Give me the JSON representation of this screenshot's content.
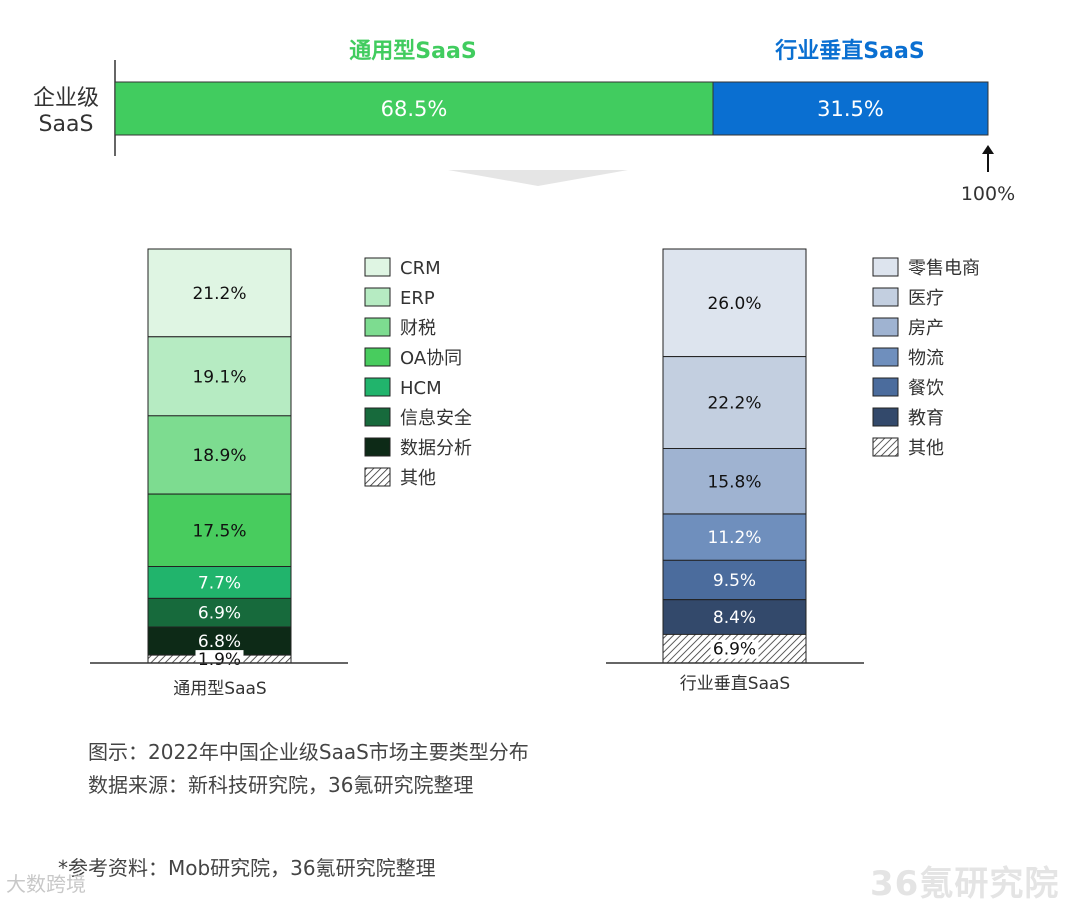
{
  "top": {
    "row_label_lines": [
      "企业级",
      "SaaS"
    ],
    "general_label": "通用型SaaS",
    "vertical_label": "行业垂直SaaS",
    "general_value": "68.5%",
    "vertical_value": "31.5%",
    "total_label": "100%",
    "colors": {
      "general": "#41cc5f",
      "vertical": "#0a6fd1"
    }
  },
  "chart_data": [
    {
      "type": "bar",
      "stacked": true,
      "orientation": "horizontal",
      "categories": [
        "企业级SaaS"
      ],
      "series": [
        {
          "name": "通用型SaaS",
          "values": [
            68.5
          ],
          "label": "68.5%",
          "color": "#41cc5f"
        },
        {
          "name": "行业垂直SaaS",
          "values": [
            31.5
          ],
          "label": "31.5%",
          "color": "#0a6fd1"
        }
      ],
      "xlim": [
        0,
        100
      ]
    },
    {
      "type": "bar",
      "stacked": true,
      "xlabel": "通用型SaaS",
      "categories": [
        "通用型SaaS"
      ],
      "series": [
        {
          "name": "CRM",
          "values": [
            21.2
          ],
          "label": "21.2%",
          "color": "#dff5e3",
          "text_color": "#111111"
        },
        {
          "name": "ERP",
          "values": [
            19.1
          ],
          "label": "19.1%",
          "color": "#b6ebc2",
          "text_color": "#111111"
        },
        {
          "name": "财税",
          "values": [
            18.9
          ],
          "label": "18.9%",
          "color": "#7ddc90",
          "text_color": "#111111"
        },
        {
          "name": "OA协同",
          "values": [
            17.5
          ],
          "label": "17.5%",
          "color": "#48cc5e",
          "text_color": "#111111"
        },
        {
          "name": "HCM",
          "values": [
            7.7
          ],
          "label": "7.7%",
          "color": "#21b46c",
          "text_color": "#ffffff"
        },
        {
          "name": "信息安全",
          "values": [
            6.9
          ],
          "label": "6.9%",
          "color": "#176a3c",
          "text_color": "#ffffff"
        },
        {
          "name": "数据分析",
          "values": [
            6.8
          ],
          "label": "6.8%",
          "color": "#0d2a17",
          "text_color": "#ffffff"
        },
        {
          "name": "其他",
          "values": [
            1.9
          ],
          "label": "1.9%",
          "color": "hatch",
          "text_color": "#111111"
        }
      ],
      "ylim": [
        0,
        100
      ]
    },
    {
      "type": "bar",
      "stacked": true,
      "xlabel": "行业垂直SaaS",
      "categories": [
        "行业垂直SaaS"
      ],
      "series": [
        {
          "name": "零售电商",
          "values": [
            26.0
          ],
          "label": "26.0%",
          "color": "#dde4ee",
          "text_color": "#111111"
        },
        {
          "name": "医疗",
          "values": [
            22.2
          ],
          "label": "22.2%",
          "color": "#c3cfe0",
          "text_color": "#111111"
        },
        {
          "name": "房产",
          "values": [
            15.8
          ],
          "label": "15.8%",
          "color": "#9fb3d1",
          "text_color": "#111111"
        },
        {
          "name": "物流",
          "values": [
            11.2
          ],
          "label": "11.2%",
          "color": "#6f8fbd",
          "text_color": "#ffffff"
        },
        {
          "name": "餐饮",
          "values": [
            9.5
          ],
          "label": "9.5%",
          "color": "#4b6c9d",
          "text_color": "#ffffff"
        },
        {
          "name": "教育",
          "values": [
            8.4
          ],
          "label": "8.4%",
          "color": "#33496b",
          "text_color": "#ffffff"
        },
        {
          "name": "其他",
          "values": [
            6.9
          ],
          "label": "6.9%",
          "color": "hatch",
          "text_color": "#111111"
        }
      ],
      "ylim": [
        0,
        100
      ]
    }
  ],
  "captions": {
    "figure": "图示：2022年中国企业级SaaS市场主要类型分布",
    "source": "数据来源：新科技研究院，36氪研究院整理",
    "reference": "*参考资料：Mob研究院，36氪研究院整理"
  },
  "watermarks": {
    "left": "大数跨境",
    "right": "36氪研究院"
  }
}
